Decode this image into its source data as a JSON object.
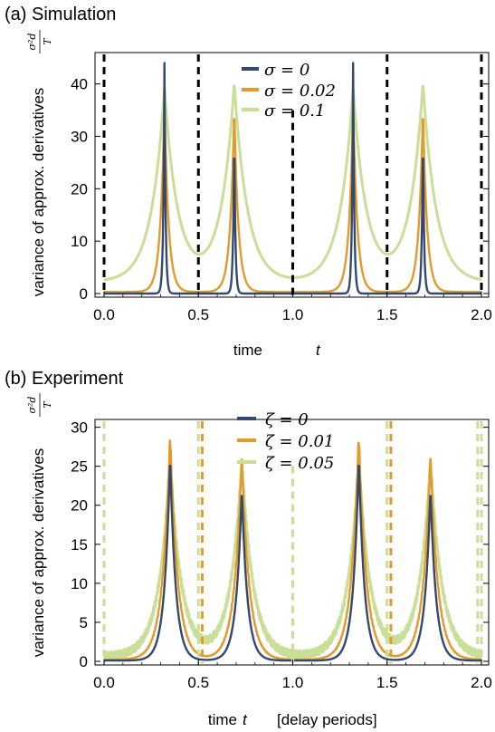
{
  "chart_data": [
    {
      "id": "a",
      "type": "line",
      "title": "(a) Simulation",
      "ylabel": "variance of approx. derivatives",
      "ylabel_symbol": {
        "num": "σ²d",
        "den": "T"
      },
      "xlabel": {
        "text": "time",
        "symbol": "t",
        "unit": ""
      },
      "xlim": [
        0,
        2.0
      ],
      "ylim": [
        0,
        46
      ],
      "xticks": [
        "0.0",
        "0.5",
        "1.0",
        "1.5",
        "2.0"
      ],
      "yticks": [
        "0",
        "10",
        "20",
        "30",
        "40"
      ],
      "ytick_values": [
        0,
        10,
        20,
        30,
        40
      ],
      "xtick_values": [
        0,
        0.5,
        1.0,
        1.5,
        2.0
      ],
      "legend_position": "top-center",
      "vlines": [
        {
          "x": 0.0,
          "color": "#000000"
        },
        {
          "x": 0.5,
          "color": "#000000"
        },
        {
          "x": 1.0,
          "color": "#000000",
          "top": 35
        },
        {
          "x": 1.5,
          "color": "#000000"
        },
        {
          "x": 2.0,
          "color": "#000000"
        }
      ],
      "peaks_x": [
        0.32,
        0.69,
        1.32,
        1.69
      ],
      "series": [
        {
          "name": "σ = 0",
          "color": "#34496e",
          "peaks": [
            44,
            31,
            44,
            31
          ],
          "base": 0,
          "width": 0.006
        },
        {
          "name": "σ = 0.02",
          "color": "#e39a2b",
          "peaks": [
            36,
            35,
            36,
            35
          ],
          "base": 0.3,
          "width": 0.022
        },
        {
          "name": "σ = 0.1",
          "color": "#c9de97",
          "peaks": [
            39,
            40,
            39,
            40
          ],
          "base": 2.2,
          "width": 0.07
        }
      ]
    },
    {
      "id": "b",
      "type": "line",
      "title": "(b) Experiment",
      "ylabel": "variance of approx. derivatives",
      "ylabel_symbol": {
        "num": "σ²d",
        "den": "T"
      },
      "xlabel": {
        "text": "time",
        "symbol": "t",
        "unit": "[delay periods]"
      },
      "xlim": [
        0,
        2.0
      ],
      "ylim": [
        0,
        31
      ],
      "xticks": [
        "0.0",
        "0.5",
        "1.0",
        "1.5",
        "2.0"
      ],
      "yticks": [
        "0",
        "5",
        "10",
        "15",
        "20",
        "25",
        "30"
      ],
      "ytick_values": [
        0,
        5,
        10,
        15,
        20,
        25,
        30
      ],
      "xtick_values": [
        0,
        0.5,
        1.0,
        1.5,
        2.0
      ],
      "legend_position": "top-center",
      "vlines": [
        {
          "x": 0.0,
          "color": "#c9de97"
        },
        {
          "x": 0.5,
          "color": "#c9de97"
        },
        {
          "x": 0.52,
          "color": "#e39a2b"
        },
        {
          "x": 1.0,
          "color": "#c9de97",
          "top": 25
        },
        {
          "x": 1.5,
          "color": "#c9de97"
        },
        {
          "x": 1.52,
          "color": "#e39a2b"
        },
        {
          "x": 1.98,
          "color": "#c9de97"
        },
        {
          "x": 2.0,
          "color": "#c9de97"
        }
      ],
      "peaks_x": [
        0.35,
        0.73,
        1.35,
        1.73
      ],
      "series": [
        {
          "name": "ζ = 0",
          "color": "#34496e",
          "peaks": [
            26,
            22,
            26,
            22
          ],
          "base": 0.1,
          "width": 0.03
        },
        {
          "name": "ζ = 0.01",
          "color": "#e39a2b",
          "peaks": [
            29,
            26,
            29,
            26
          ],
          "base": 0.2,
          "width": 0.04
        },
        {
          "name": "ζ = 0.05",
          "color": "#c9de97",
          "peaks": [
            26,
            26,
            26,
            26
          ],
          "base": 0.6,
          "width": 0.06
        }
      ]
    }
  ]
}
